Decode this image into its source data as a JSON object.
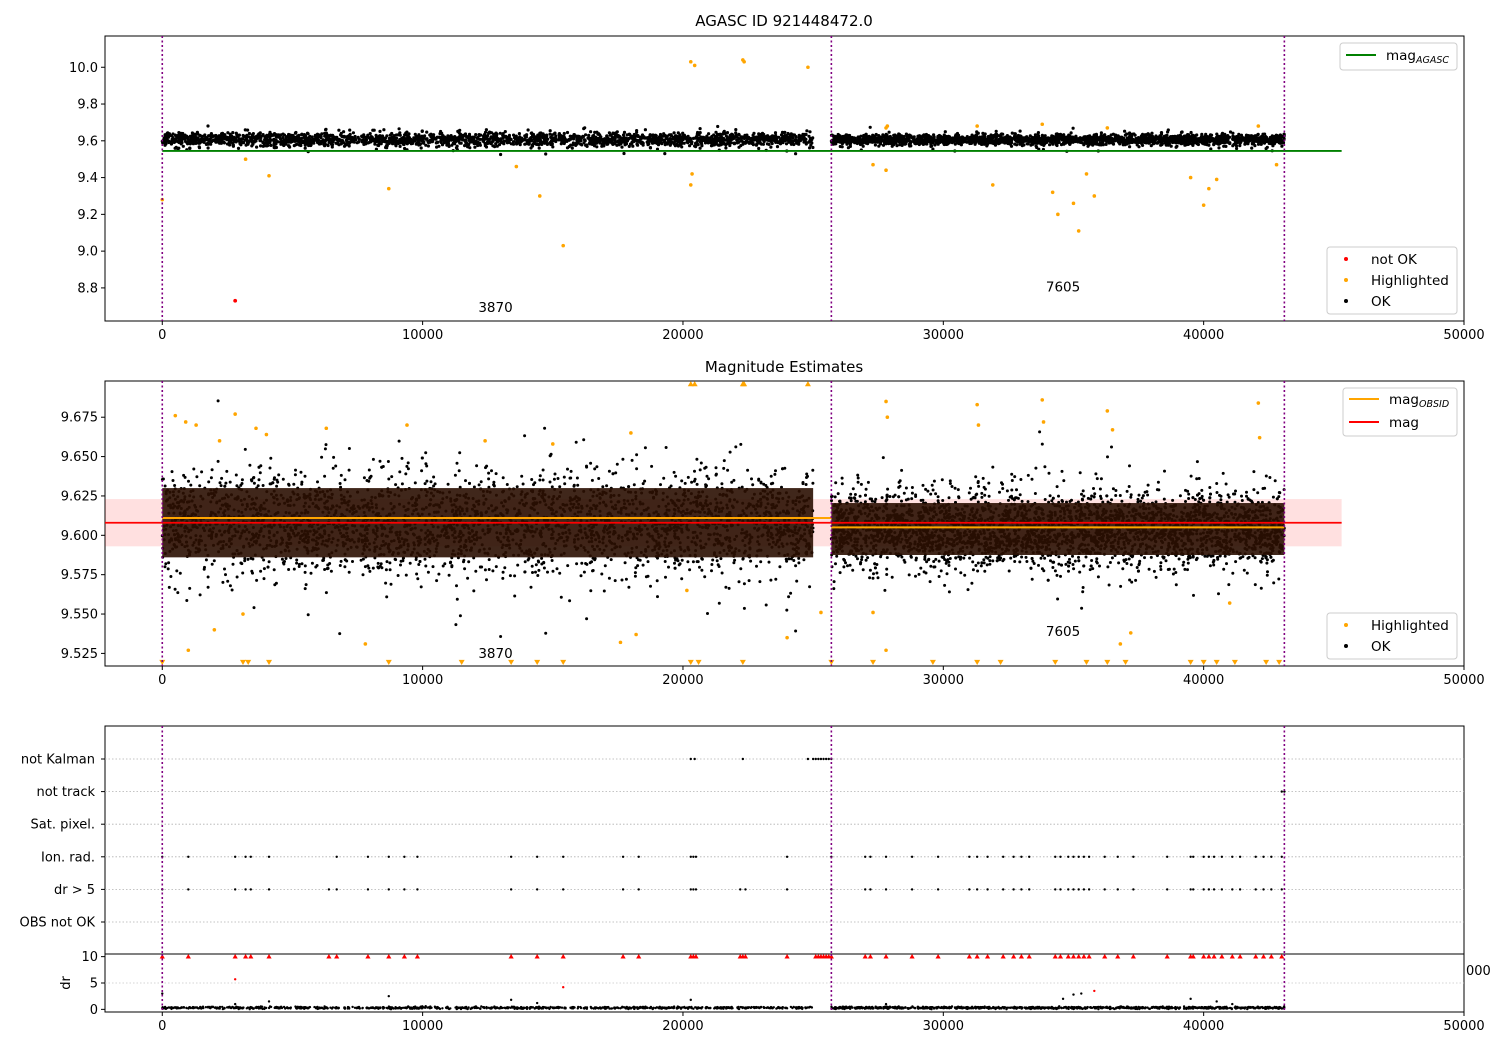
{
  "chart_data": [
    {
      "type": "scatter",
      "title": "AGASC ID 921448472.0",
      "xlabel": "",
      "ylabel": "",
      "xlim": [
        -2200,
        50000
      ],
      "ylim": [
        8.62,
        10.17
      ],
      "xticks": [
        0,
        10000,
        20000,
        30000,
        40000,
        50000
      ],
      "xtick_labels": [
        "0",
        "10000",
        "20000",
        "30000",
        "40000",
        "50000"
      ],
      "yticks": [
        8.8,
        9.0,
        9.2,
        9.4,
        9.6,
        9.8,
        10.0
      ],
      "ytick_labels": [
        "8.8",
        "9.0",
        "9.2",
        "9.4",
        "9.6",
        "9.8",
        "10.0"
      ],
      "line_legend": [
        {
          "label": "mag",
          "sub": "AGASC",
          "color": "#008000"
        }
      ],
      "point_legend": [
        {
          "label": "not OK",
          "color": "#ff0000"
        },
        {
          "label": "Highlighted",
          "color": "#ffa500"
        },
        {
          "label": "OK",
          "color": "#000000"
        }
      ],
      "reference_lines": [
        {
          "name": "mag_AGASC",
          "y": 9.545,
          "x_range": [
            0,
            45300
          ],
          "color": "#008000"
        }
      ],
      "obsid_boundaries": [
        0,
        25700,
        43100
      ],
      "obsid_labels": [
        {
          "text": "3870",
          "x": 12800,
          "y": 8.67
        },
        {
          "text": "7605",
          "x": 34600,
          "y": 8.78
        }
      ],
      "ok_bands": [
        {
          "x": [
            0,
            25000
          ],
          "center": 9.607,
          "half_width": 0.045
        },
        {
          "x": [
            25700,
            43100
          ],
          "center": 9.606,
          "half_width": 0.035
        }
      ],
      "highlighted_points": [
        {
          "x": 0,
          "y": 9.28
        },
        {
          "x": 3200,
          "y": 9.5
        },
        {
          "x": 4100,
          "y": 9.41
        },
        {
          "x": 8700,
          "y": 9.34
        },
        {
          "x": 13600,
          "y": 9.46
        },
        {
          "x": 14500,
          "y": 9.3
        },
        {
          "x": 15400,
          "y": 9.03
        },
        {
          "x": 20300,
          "y": 10.03
        },
        {
          "x": 20450,
          "y": 10.01
        },
        {
          "x": 22300,
          "y": 10.04
        },
        {
          "x": 22350,
          "y": 10.03
        },
        {
          "x": 24800,
          "y": 10.0
        },
        {
          "x": 20300,
          "y": 9.36
        },
        {
          "x": 20350,
          "y": 9.42
        },
        {
          "x": 27300,
          "y": 9.47
        },
        {
          "x": 27800,
          "y": 9.44
        },
        {
          "x": 31900,
          "y": 9.36
        },
        {
          "x": 34200,
          "y": 9.32
        },
        {
          "x": 34400,
          "y": 9.2
        },
        {
          "x": 35000,
          "y": 9.26
        },
        {
          "x": 35200,
          "y": 9.11
        },
        {
          "x": 35500,
          "y": 9.42
        },
        {
          "x": 35800,
          "y": 9.3
        },
        {
          "x": 39500,
          "y": 9.4
        },
        {
          "x": 40000,
          "y": 9.25
        },
        {
          "x": 40200,
          "y": 9.34
        },
        {
          "x": 40500,
          "y": 9.39
        },
        {
          "x": 42800,
          "y": 9.47
        },
        {
          "x": 27800,
          "y": 9.67
        },
        {
          "x": 27850,
          "y": 9.68
        },
        {
          "x": 31300,
          "y": 9.68
        },
        {
          "x": 33800,
          "y": 9.69
        },
        {
          "x": 36300,
          "y": 9.67
        },
        {
          "x": 42100,
          "y": 9.68
        }
      ],
      "not_ok_points": [
        {
          "x": 2800,
          "y": 8.73
        }
      ]
    },
    {
      "type": "scatter",
      "title": "Magnitude Estimates",
      "xlabel": "",
      "ylabel": "",
      "xlim": [
        -2200,
        50000
      ],
      "ylim": [
        9.517,
        9.698
      ],
      "xticks": [
        0,
        10000,
        20000,
        30000,
        40000,
        50000
      ],
      "xtick_labels": [
        "0",
        "10000",
        "20000",
        "30000",
        "40000",
        "50000"
      ],
      "yticks": [
        9.525,
        9.55,
        9.575,
        9.6,
        9.625,
        9.65,
        9.675
      ],
      "ytick_labels": [
        "9.525",
        "9.550",
        "9.575",
        "9.600",
        "9.625",
        "9.650",
        "9.675"
      ],
      "line_legend": [
        {
          "label": "mag",
          "sub": "OBSID",
          "color": "#ffa500"
        },
        {
          "label": "mag",
          "sub": "",
          "color": "#ff0000"
        }
      ],
      "point_legend": [
        {
          "label": "Highlighted",
          "color": "#ffa500"
        },
        {
          "label": "OK",
          "color": "#000000"
        }
      ],
      "mag": {
        "y": 9.608,
        "band": [
          9.593,
          9.623
        ],
        "x_range": [
          -2200,
          45300
        ]
      },
      "mag_obsid": [
        {
          "x": [
            0,
            25700
          ],
          "y": 9.611
        },
        {
          "x": [
            25700,
            43100
          ],
          "y": 9.605
        }
      ],
      "obsid_boundaries": [
        0,
        25700,
        43100
      ],
      "obsid_labels": [
        {
          "text": "3870",
          "x": 12800,
          "y": 9.522
        },
        {
          "text": "7605",
          "x": 34600,
          "y": 9.536
        }
      ],
      "ok_bands": [
        {
          "x": [
            0,
            25000
          ],
          "center": 9.608,
          "half_width": 0.04
        },
        {
          "x": [
            25700,
            43100
          ],
          "center": 9.604,
          "half_width": 0.03
        }
      ],
      "highlighted_points": [
        {
          "x": 500,
          "y": 9.676
        },
        {
          "x": 900,
          "y": 9.672
        },
        {
          "x": 1300,
          "y": 9.67
        },
        {
          "x": 2200,
          "y": 9.66
        },
        {
          "x": 2800,
          "y": 9.677
        },
        {
          "x": 3600,
          "y": 9.668
        },
        {
          "x": 4000,
          "y": 9.664
        },
        {
          "x": 6300,
          "y": 9.668
        },
        {
          "x": 9400,
          "y": 9.67
        },
        {
          "x": 12400,
          "y": 9.66
        },
        {
          "x": 15000,
          "y": 9.658
        },
        {
          "x": 18000,
          "y": 9.665
        },
        {
          "x": 27800,
          "y": 9.685
        },
        {
          "x": 27850,
          "y": 9.675
        },
        {
          "x": 31300,
          "y": 9.683
        },
        {
          "x": 31350,
          "y": 9.67
        },
        {
          "x": 33800,
          "y": 9.686
        },
        {
          "x": 33850,
          "y": 9.672
        },
        {
          "x": 36300,
          "y": 9.679
        },
        {
          "x": 36500,
          "y": 9.667
        },
        {
          "x": 42100,
          "y": 9.684
        },
        {
          "x": 42150,
          "y": 9.662
        },
        {
          "x": 1000,
          "y": 9.527
        },
        {
          "x": 2000,
          "y": 9.54
        },
        {
          "x": 3100,
          "y": 9.55
        },
        {
          "x": 7800,
          "y": 9.531
        },
        {
          "x": 17600,
          "y": 9.532
        },
        {
          "x": 18200,
          "y": 9.537
        },
        {
          "x": 24000,
          "y": 9.535
        },
        {
          "x": 27300,
          "y": 9.551
        },
        {
          "x": 27800,
          "y": 9.527
        },
        {
          "x": 36800,
          "y": 9.531
        },
        {
          "x": 37200,
          "y": 9.538
        },
        {
          "x": 41000,
          "y": 9.557
        },
        {
          "x": 25300,
          "y": 9.551
        },
        {
          "x": 20150,
          "y": 9.565
        }
      ],
      "clipped_low_markers": [
        0,
        3100,
        3300,
        4100,
        8700,
        11500,
        13400,
        14400,
        15400,
        20300,
        20600,
        22300,
        25700,
        27300,
        29600,
        31300,
        32200,
        34300,
        35500,
        36300,
        37000,
        39500,
        40000,
        40500,
        41200,
        42400,
        42900
      ],
      "clipped_high_markers": [
        20300,
        20450,
        22300,
        22350,
        24800
      ]
    },
    {
      "type": "scatter",
      "title": "",
      "xlabel": "",
      "ylabel": "",
      "xlim": [
        -2200,
        50000
      ],
      "categories": [
        "not Kalman",
        "not track",
        "Sat. pixel.",
        "Ion. rad.",
        "dr > 5",
        "OBS not OK"
      ],
      "obsid_boundaries": [
        0,
        25700,
        43100
      ],
      "flags": {
        "not Kalman": [
          20300,
          20450,
          22300,
          24800,
          25000,
          25100,
          25200,
          25300,
          25400,
          25500,
          25600,
          25700
        ],
        "not track": [
          43000,
          43100
        ],
        "Sat. pixel.": [],
        "Ion. rad.": [
          0,
          1000,
          2800,
          3200,
          3400,
          4100,
          6700,
          7900,
          8700,
          9300,
          9800,
          13400,
          14400,
          15400,
          17700,
          18300,
          20300,
          20400,
          20500,
          24000,
          25700,
          27000,
          27200,
          27800,
          28800,
          29800,
          31000,
          31300,
          31700,
          32300,
          32700,
          33000,
          33300,
          34300,
          34500,
          34800,
          35000,
          35200,
          35400,
          35600,
          36200,
          36700,
          37300,
          38600,
          39500,
          39600,
          40000,
          40200,
          40400,
          40700,
          41100,
          41400,
          42000,
          42300,
          42600,
          43000
        ],
        "dr > 5": [
          0,
          1000,
          2800,
          3200,
          3400,
          4100,
          6400,
          6700,
          7900,
          8700,
          9300,
          9800,
          13400,
          14400,
          15400,
          17700,
          18300,
          20300,
          20400,
          20500,
          22200,
          22400,
          24000,
          25700,
          27000,
          27200,
          27800,
          28800,
          29800,
          31000,
          31300,
          31700,
          32300,
          32700,
          33000,
          33300,
          34300,
          34500,
          34800,
          35000,
          35200,
          35400,
          35600,
          36200,
          36700,
          37300,
          38600,
          39500,
          39600,
          40000,
          40200,
          40400,
          40700,
          41100,
          41400,
          42000,
          42300,
          42600,
          43000
        ],
        "OBS not OK": []
      }
    },
    {
      "type": "scatter",
      "title": "",
      "xlabel": "",
      "ylabel": "dr",
      "xlim": [
        -2200,
        50000
      ],
      "ylim": [
        -0.5,
        10.5
      ],
      "yticks": [
        0,
        5,
        10
      ],
      "ytick_labels": [
        "0",
        "5",
        "10"
      ],
      "xticks": [
        0,
        10000,
        20000,
        30000,
        40000,
        50000
      ],
      "xtick_labels": [
        "0",
        "10000",
        "20000",
        "30000",
        "40000",
        "50000"
      ],
      "clipped_right_label": "000",
      "obsid_boundaries": [
        0,
        25700,
        43100
      ],
      "baseline": {
        "center": 0.3,
        "half_width": 0.3
      },
      "black_points": [
        {
          "x": 0,
          "y": 3.0
        },
        {
          "x": 2800,
          "y": 1.0
        },
        {
          "x": 4100,
          "y": 1.5
        },
        {
          "x": 8700,
          "y": 2.5
        },
        {
          "x": 13400,
          "y": 1.8
        },
        {
          "x": 14400,
          "y": 1.2
        },
        {
          "x": 20300,
          "y": 1.8
        },
        {
          "x": 27800,
          "y": 1.0
        },
        {
          "x": 34600,
          "y": 2.0
        },
        {
          "x": 35000,
          "y": 2.8
        },
        {
          "x": 35300,
          "y": 3.0
        },
        {
          "x": 39500,
          "y": 2.0
        },
        {
          "x": 40500,
          "y": 1.5
        },
        {
          "x": 41100,
          "y": 1.0
        }
      ],
      "red_points": [
        {
          "x": 2800,
          "y": 5.7
        },
        {
          "x": 15400,
          "y": 4.2
        },
        {
          "x": 35800,
          "y": 3.5
        }
      ],
      "clipped_high_red": [
        0,
        1000,
        2800,
        3200,
        3400,
        4100,
        6400,
        6700,
        7900,
        8700,
        9300,
        9800,
        13400,
        14400,
        15400,
        17700,
        18300,
        20300,
        20400,
        20500,
        22200,
        22300,
        22400,
        24000,
        25100,
        25200,
        25300,
        25400,
        25500,
        25600,
        25700,
        27000,
        27200,
        27800,
        28800,
        29800,
        31000,
        31300,
        31700,
        32300,
        32700,
        33000,
        33300,
        34300,
        34500,
        34800,
        35000,
        35200,
        35400,
        35600,
        36200,
        36700,
        37300,
        38600,
        39500,
        39600,
        40000,
        40200,
        40400,
        40700,
        41100,
        41400,
        42000,
        42300,
        42600,
        43000
      ]
    }
  ]
}
